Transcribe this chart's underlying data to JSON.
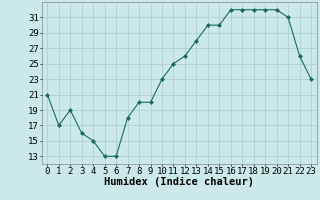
{
  "x": [
    0,
    1,
    2,
    3,
    4,
    5,
    6,
    7,
    8,
    9,
    10,
    11,
    12,
    13,
    14,
    15,
    16,
    17,
    18,
    19,
    20,
    21,
    22,
    23
  ],
  "y": [
    21,
    17,
    19,
    16,
    15,
    13,
    13,
    18,
    20,
    20,
    23,
    25,
    26,
    28,
    30,
    30,
    32,
    32,
    32,
    32,
    32,
    31,
    26,
    23
  ],
  "line_color": "#1a6b5a",
  "marker": "D",
  "marker_size": 2.0,
  "bg_color": "#cce9e9",
  "grid_color": "#aacccc",
  "xlabel": "Humidex (Indice chaleur)",
  "ylim": [
    12,
    33
  ],
  "yticks": [
    13,
    15,
    17,
    19,
    21,
    23,
    25,
    27,
    29,
    31
  ],
  "xlim": [
    -0.5,
    23.5
  ],
  "xticks": [
    0,
    1,
    2,
    3,
    4,
    5,
    6,
    7,
    8,
    9,
    10,
    11,
    12,
    13,
    14,
    15,
    16,
    17,
    18,
    19,
    20,
    21,
    22,
    23
  ],
  "tick_fontsize": 6.5,
  "label_fontsize": 7.5
}
